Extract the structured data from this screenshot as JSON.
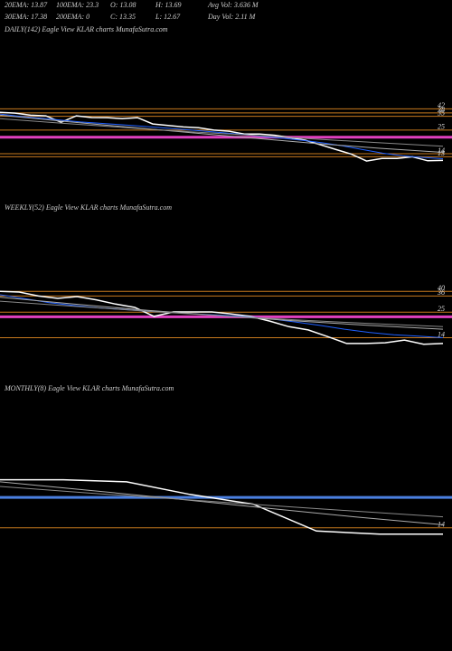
{
  "header": {
    "items": [
      "20EMA: 13.87",
      "100EMA: 23.3",
      "O: 13.08",
      "H: 13.69",
      "Avg Vol: 3.636  M",
      "30EMA: 17.38",
      "200EMA: 0",
      "C: 13.35",
      "L: 12.67",
      "Day Vol: 2.11 M"
    ]
  },
  "chart_data": [
    {
      "type": "line",
      "title": "DAILY(142) Eagle   View  KLAR charts MunafaSutra.com",
      "log_scale": true,
      "ylim": [
        9,
        66
      ],
      "yticks": [
        42,
        38,
        35,
        25,
        14,
        13
      ],
      "tick_color": "#c87a1e",
      "levels": [
        {
          "value": 21,
          "color": "#e040c0"
        }
      ],
      "series": [
        {
          "color": "#ffffff",
          "values": [
            38.5,
            37.9,
            36,
            35.4,
            30.3,
            35.4,
            34,
            33.9,
            33,
            33.9,
            29,
            28,
            27,
            26.5,
            25,
            24.3,
            22.7,
            22.7,
            22,
            20.8,
            19.5,
            17.4,
            15.5,
            13.9,
            11.7,
            12.5,
            12.5,
            13,
            11.8,
            11.9
          ]
        },
        {
          "color": "#2060ff",
          "values": [
            37,
            35,
            33.5,
            32,
            30.5,
            29.5,
            28.5,
            27.5,
            26.5,
            25.5,
            24.5,
            23.5,
            22.5,
            21.5,
            20.5,
            19.5,
            18.3,
            17,
            15.5,
            14.2,
            13.3,
            12.8,
            12.4
          ]
        },
        {
          "color": "#aaaaaa",
          "values": [
            36,
            31,
            27,
            23.5,
            20.5,
            18,
            16,
            14.5
          ]
        },
        {
          "color": "#888888",
          "values": [
            33,
            29.5,
            26.5,
            24,
            22,
            20,
            18.3,
            16.8
          ]
        }
      ]
    },
    {
      "type": "line",
      "title": "WEEKLY(52) Eagle   View  KLAR charts MunafaSutra.com",
      "log_scale": true,
      "ylim": [
        10,
        63
      ],
      "yticks": [
        40,
        36,
        25,
        14
      ],
      "tick_color": "#c87a1e",
      "levels": [
        {
          "value": 22.5,
          "color": "#e040c0"
        }
      ],
      "series": [
        {
          "color": "#ffffff",
          "values": [
            40,
            39.4,
            36,
            34.1,
            35.5,
            33,
            30,
            27.8,
            22.7,
            25.1,
            25.1,
            25.1,
            24,
            22.7,
            20.4,
            18,
            16.7,
            14.4,
            12.3,
            12.3,
            12.5,
            13.3,
            12.1,
            12.3
          ]
        },
        {
          "color": "#2060ff",
          "values": [
            37,
            34,
            31,
            29,
            27.5,
            26.5,
            25.5,
            24.8,
            24,
            23.3,
            22.5,
            21.5,
            20,
            18.5,
            17,
            15.8,
            15,
            14.5,
            14
          ]
        },
        {
          "color": "#aaaaaa",
          "values": [
            35,
            30,
            26,
            23,
            20.5,
            18.5,
            17
          ]
        },
        {
          "color": "#888888",
          "values": [
            32,
            28.5,
            25.5,
            23,
            21,
            19.3,
            18
          ]
        }
      ]
    },
    {
      "type": "line",
      "title": "MONTHLY(8) Eagle   View  KLAR charts MunafaSutra.com",
      "log_scale": true,
      "ylim": [
        10,
        79
      ],
      "yticks": [
        14
      ],
      "tick_color": "#c87a1e",
      "levels": [
        {
          "value": 28,
          "color": "#4a7fe0"
        }
      ],
      "series": [
        {
          "color": "#ffffff",
          "values": [
            42,
            42,
            40,
            30,
            24,
            13,
            12.1,
            12.1
          ]
        },
        {
          "color": "#aaaaaa",
          "values": [
            40,
            33,
            27,
            22,
            18,
            15
          ]
        },
        {
          "color": "#888888",
          "values": [
            36,
            31,
            27,
            23.5,
            20.5,
            18
          ]
        }
      ]
    }
  ]
}
